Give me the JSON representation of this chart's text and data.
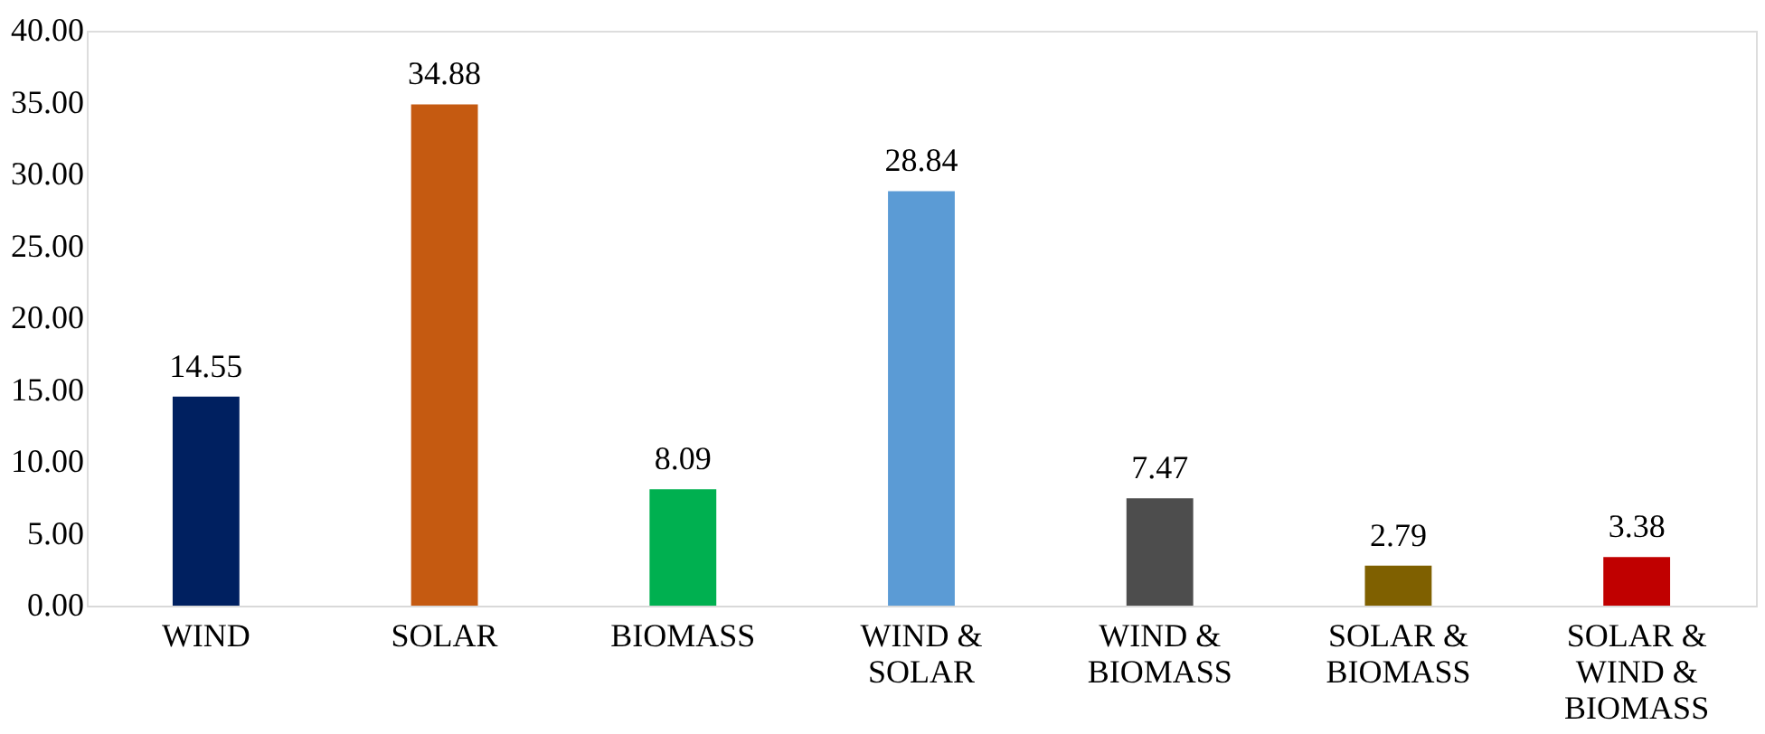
{
  "chart_data": {
    "type": "bar",
    "categories": [
      "WIND",
      "SOLAR",
      "BIOMASS",
      "WIND & SOLAR",
      "WIND & BIOMASS",
      "SOLAR & BIOMASS",
      "SOLAR & WIND & BIOMASS"
    ],
    "values": [
      14.55,
      34.88,
      8.09,
      28.84,
      7.47,
      2.79,
      3.38
    ],
    "colors": [
      "#002060",
      "#c55a11",
      "#00b050",
      "#5b9bd5",
      "#4d4d4d",
      "#7f6000",
      "#c00000"
    ],
    "ylim": [
      0,
      40
    ],
    "yticks": [
      {
        "value": 0,
        "label": "0.00"
      },
      {
        "value": 5,
        "label": "5.00"
      },
      {
        "value": 10,
        "label": "10.00"
      },
      {
        "value": 15,
        "label": "15.00"
      },
      {
        "value": 20,
        "label": "20.00"
      },
      {
        "value": 25,
        "label": "25.00"
      },
      {
        "value": 30,
        "label": "30.00"
      },
      {
        "value": 35,
        "label": "35.00"
      },
      {
        "value": 40,
        "label": "40.00"
      }
    ],
    "data_labels": true,
    "grid": false,
    "legend": false
  }
}
